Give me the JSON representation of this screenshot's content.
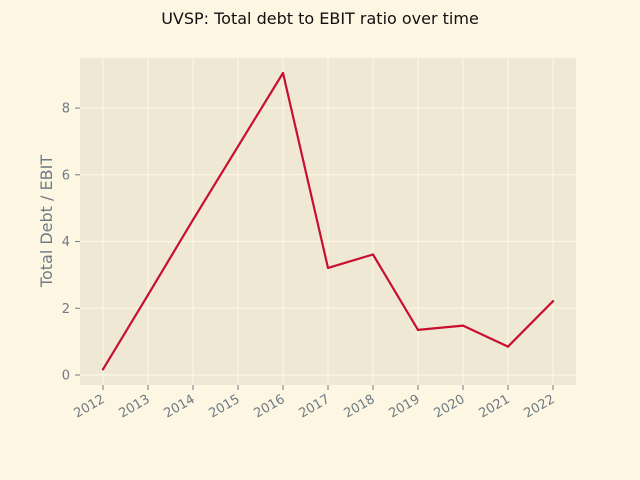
{
  "colors": {
    "page_background": "#fdf6e3",
    "plot_background": "#eee8d5",
    "grid": "#fdf6e3",
    "series_line": "#c8102e",
    "axis_text": "#6f7b83",
    "title_text": "#111111"
  },
  "chart_data": {
    "type": "line",
    "title": "UVSP: Total debt to EBIT ratio over time",
    "xlabel": "",
    "ylabel": "Total Debt / EBIT",
    "x": [
      "2012",
      "2013",
      "2014",
      "2015",
      "2016",
      "2017",
      "2018",
      "2019",
      "2020",
      "2021",
      "2022"
    ],
    "series": [
      {
        "values": [
          0.17,
          2.4,
          4.65,
          6.85,
          9.05,
          3.21,
          3.61,
          1.35,
          1.48,
          0.85,
          2.21
        ]
      }
    ],
    "yticks": [
      0,
      2,
      4,
      6,
      8
    ],
    "ylim": [
      -0.3,
      9.5
    ],
    "grid": true,
    "legend": "none"
  }
}
